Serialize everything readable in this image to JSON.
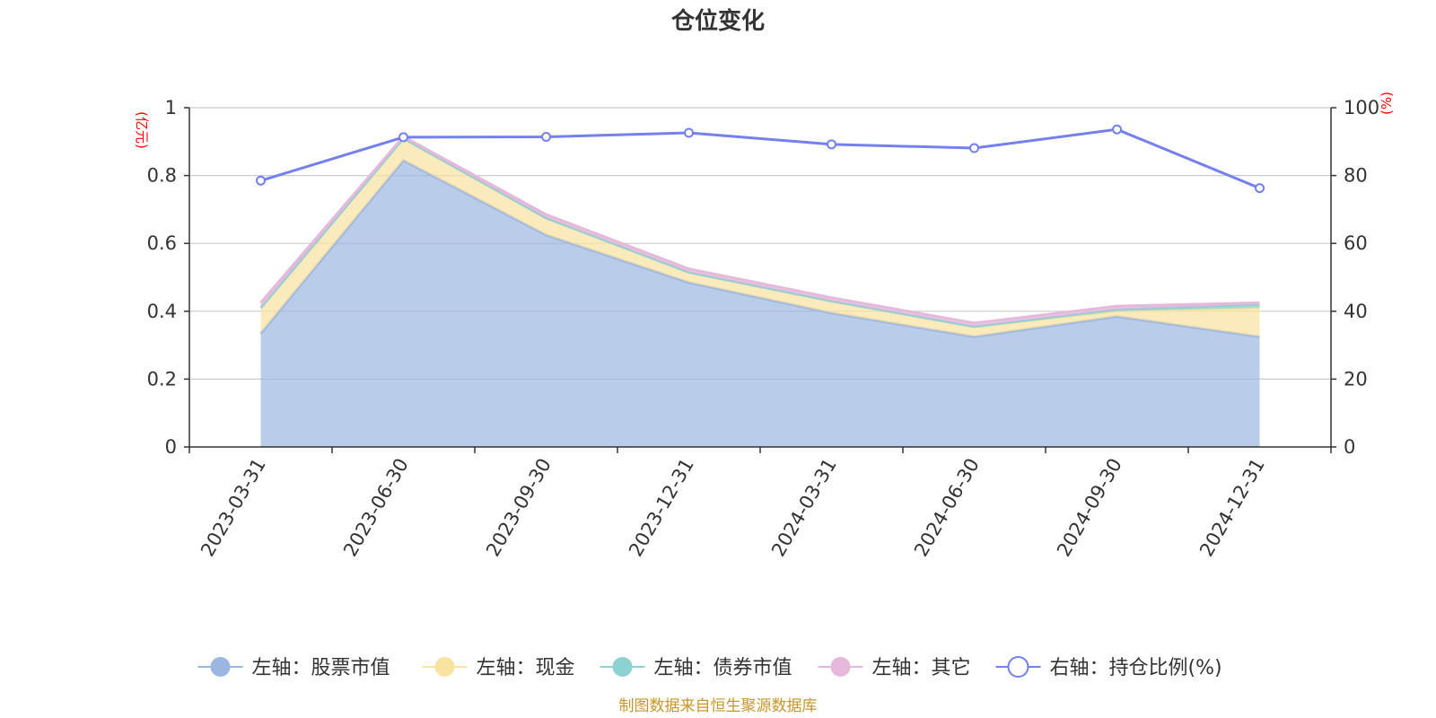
{
  "chart_data": {
    "type": "area",
    "title": "仓位变化",
    "source": "制图数据来自恒生聚源数据库",
    "x": [
      "2023-03-31",
      "2023-06-30",
      "2023-09-30",
      "2023-12-31",
      "2024-03-31",
      "2024-06-30",
      "2024-09-30",
      "2024-12-31"
    ],
    "left_axis": {
      "unit": "(亿元)",
      "ylim": [
        0,
        1
      ],
      "ticks": [
        "0",
        "0.2",
        "0.4",
        "0.6",
        "0.8",
        "1"
      ]
    },
    "right_axis": {
      "unit": "(%)",
      "ylim": [
        0,
        100
      ],
      "ticks": [
        "0",
        "20",
        "40",
        "60",
        "80",
        "100"
      ]
    },
    "stacked_series": [
      {
        "name": "左轴：股票市值",
        "color": "#9bb6e0",
        "values": [
          0.335,
          0.845,
          0.625,
          0.485,
          0.395,
          0.325,
          0.385,
          0.325
        ]
      },
      {
        "name": "左轴：现金",
        "color": "#f9e3a0",
        "values": [
          0.075,
          0.065,
          0.05,
          0.03,
          0.035,
          0.03,
          0.015,
          0.085
        ]
      },
      {
        "name": "左轴：债券市值",
        "color": "#8ed1d1",
        "values": [
          0,
          0,
          0,
          0,
          0,
          0,
          0.005,
          0.01
        ]
      },
      {
        "name": "左轴：其它",
        "color": "#e6b8dc",
        "values": [
          0.015,
          0.005,
          0.01,
          0.01,
          0.01,
          0.01,
          0.01,
          0.005
        ]
      }
    ],
    "line_series": {
      "name": "右轴：持仓比例(%)",
      "color": "#7480f0",
      "values": [
        78.5,
        91.3,
        91.4,
        92.6,
        89.2,
        88.1,
        93.6,
        76.3
      ]
    },
    "grid": true,
    "legend_position": "bottom"
  }
}
